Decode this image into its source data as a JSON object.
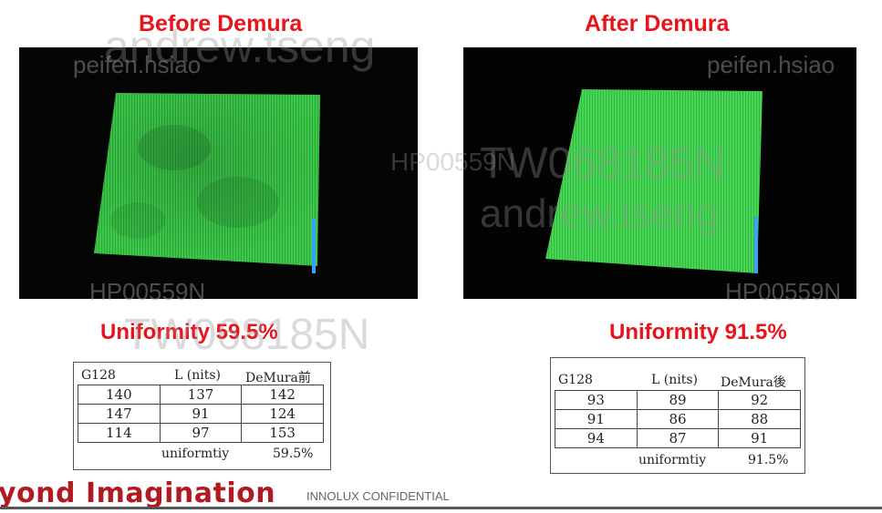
{
  "before": {
    "title": "Before Demura",
    "uniformity": "Uniformity 59.5%",
    "table": {
      "headers": [
        "G128",
        "L (nits)",
        "DeMura前"
      ],
      "rows": [
        [
          "140",
          "137",
          "142"
        ],
        [
          "147",
          "91",
          "124"
        ],
        [
          "114",
          "97",
          "153"
        ]
      ],
      "footer_label": "uniformtiy",
      "footer_value": "59.5%"
    }
  },
  "after": {
    "title": "After Demura",
    "uniformity": "Uniformity 91.5%",
    "table": {
      "headers": [
        "G128",
        "L (nits)",
        "DeMura後"
      ],
      "rows": [
        [
          "93",
          "89",
          "92"
        ],
        [
          "91",
          "86",
          "88"
        ],
        [
          "94",
          "87",
          "91"
        ]
      ],
      "footer_label": "uniformtiy",
      "footer_value": "91.5%"
    }
  },
  "watermarks": [
    "andrew.tseng",
    "peifen.hsiao",
    "HP00559N",
    "TW068185N",
    "andrew.tseng",
    "peifen.hsiao",
    "HP00559N",
    "TW068185N",
    "HP00559N"
  ],
  "brand": {
    "part1": "yond ",
    "part2": "Imagination"
  },
  "confidential": "INNOLUX CONFIDENTIAL",
  "colors": {
    "accent_red": "#e8131b",
    "panel_green": "#3fd34a",
    "brand_red": "#b11a20"
  }
}
